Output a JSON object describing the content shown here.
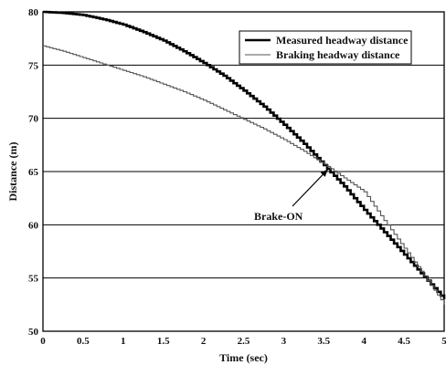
{
  "chart_data": {
    "type": "line",
    "xlabel": "Time (sec)",
    "ylabel": "Distance (m)",
    "xlim": [
      0,
      5
    ],
    "ylim": [
      50,
      80
    ],
    "x_ticks": [
      "0",
      "0.5",
      "1",
      "1.5",
      "2",
      "2.5",
      "3",
      "3.5",
      "4",
      "4.5",
      "5"
    ],
    "y_ticks": [
      "50",
      "55",
      "60",
      "65",
      "70",
      "75",
      "80"
    ],
    "grid": "horizontal",
    "legend_position": "top-right",
    "series": [
      {
        "name": "Measured headway distance",
        "color": "#000000",
        "style": "thick",
        "x": [
          0,
          0.25,
          0.5,
          0.75,
          1.0,
          1.25,
          1.5,
          1.75,
          2.0,
          2.25,
          2.5,
          2.75,
          3.0,
          3.25,
          3.5,
          3.75,
          4.0,
          4.25,
          4.5,
          4.75,
          5.0
        ],
        "y": [
          80.0,
          79.9,
          79.7,
          79.3,
          78.8,
          78.1,
          77.3,
          76.3,
          75.2,
          74.0,
          72.6,
          71.1,
          69.4,
          67.6,
          65.6,
          63.6,
          61.4,
          59.3,
          57.2,
          55.1,
          53.0
        ]
      },
      {
        "name": "Braking headway distance",
        "color": "#555555",
        "style": "thin",
        "x": [
          0,
          0.25,
          0.5,
          0.75,
          1.0,
          1.25,
          1.5,
          1.75,
          2.0,
          2.25,
          2.5,
          2.75,
          3.0,
          3.25,
          3.5,
          3.75,
          4.0,
          4.25,
          4.5,
          4.75,
          5.0
        ],
        "y": [
          76.8,
          76.3,
          75.7,
          75.1,
          74.5,
          73.9,
          73.2,
          72.5,
          71.7,
          70.8,
          69.9,
          69.0,
          68.0,
          66.9,
          65.7,
          64.4,
          63.1,
          60.4,
          57.8,
          55.2,
          52.5
        ]
      }
    ],
    "annotations": [
      {
        "text": "Brake-ON",
        "x": 3.55,
        "y": 65.2
      }
    ]
  }
}
